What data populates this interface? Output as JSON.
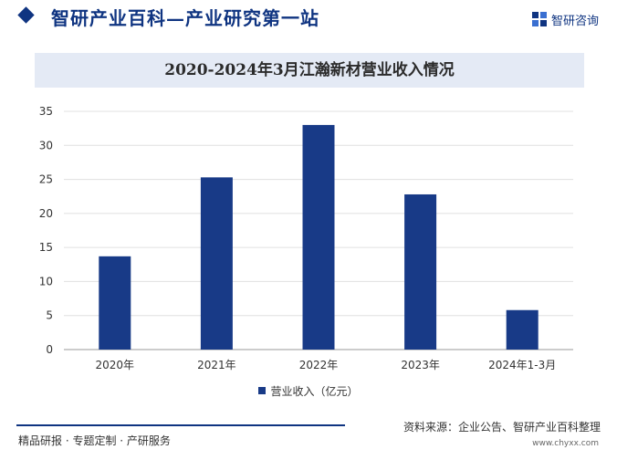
{
  "header": {
    "title": "智研产业百科—产业研究第一站",
    "brand_name": "智研咨询"
  },
  "chart_data": {
    "type": "bar",
    "title": "2020-2024年3月江瀚新材营业收入情况",
    "categories": [
      "2020年",
      "2021年",
      "2022年",
      "2023年",
      "2024年1-3月"
    ],
    "series": [
      {
        "name": "营业收入（亿元）",
        "values": [
          13.7,
          25.3,
          33.0,
          22.8,
          5.8
        ]
      }
    ],
    "ylim": [
      0,
      35
    ],
    "yticks": [
      "0",
      "5",
      "10",
      "15",
      "20",
      "25",
      "30",
      "35"
    ],
    "grid": true,
    "legend_position": "bottom",
    "bar_color": "#183a87"
  },
  "footer": {
    "left_text": "精品研报 · 专题定制 · 产研服务",
    "source": "资料来源：企业公告、智研产业百科整理",
    "url": "www.chyxx.com"
  },
  "colors": {
    "brand": "#0f3481",
    "title_bg": "#e4eaf5"
  }
}
